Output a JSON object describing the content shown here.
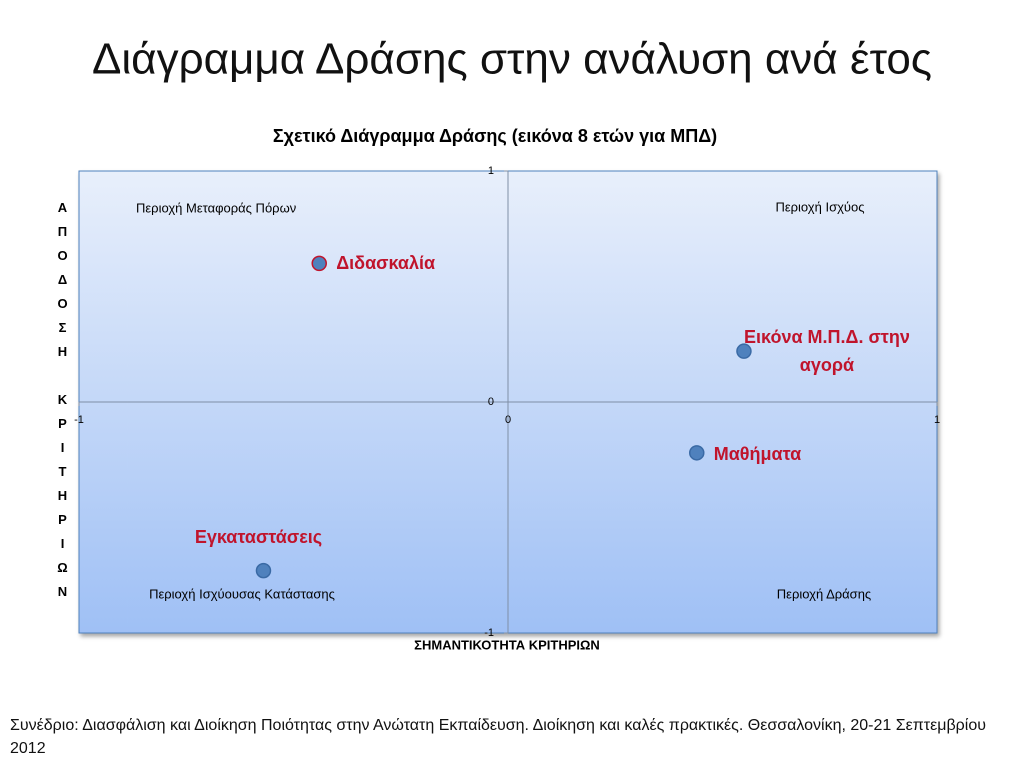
{
  "slide_title": "Διάγραμμα Δράσης στην ανάλυση ανά έτος",
  "footer": "Συνέδριο: Διασφάλιση και Διοίκηση Ποιότητας στην Ανώτατη Εκπαίδευση. Διοίκηση και καλές πρακτικές. Θεσσαλονίκη, 20-21 Σεπτεμβρίου 2012",
  "chart_data": {
    "type": "scatter",
    "title": "Σχετικό Διάγραμμα Δράσης (εικόνα 8 ετών για ΜΠΔ)",
    "xlabel": "ΣΗΜΑΝΤΙΚΟΤΗΤΑ ΚΡΙΤΗΡΙΩΝ",
    "ylabel": "ΑΠΟΔΟΣΗ ΚΡΙΤΗΡΙΩΝ",
    "labels": [
      "Διδασκαλία",
      "Εικόνα Μ.Π.Δ. στην αγορά",
      "Μαθήματα",
      "Εγκαταστάσεις"
    ],
    "x": [
      -0.44,
      0.55,
      0.44,
      -0.57
    ],
    "values": [
      0.6,
      0.22,
      -0.22,
      -0.73
    ],
    "color": "#4f81bd",
    "label_color": "#c0142c",
    "xlim": [
      -1,
      1
    ],
    "xticks": [
      -1,
      0,
      1
    ],
    "ylim": [
      -1,
      1
    ],
    "yticks": [
      -1,
      0,
      1
    ],
    "annotations": [
      "Περιοχή Μεταφοράς Πόρων",
      "Περιοχή Ισχύος",
      "Περιοχή Ισχύουσας Κατάστασης",
      "Περιοχή Δράσης"
    ]
  }
}
